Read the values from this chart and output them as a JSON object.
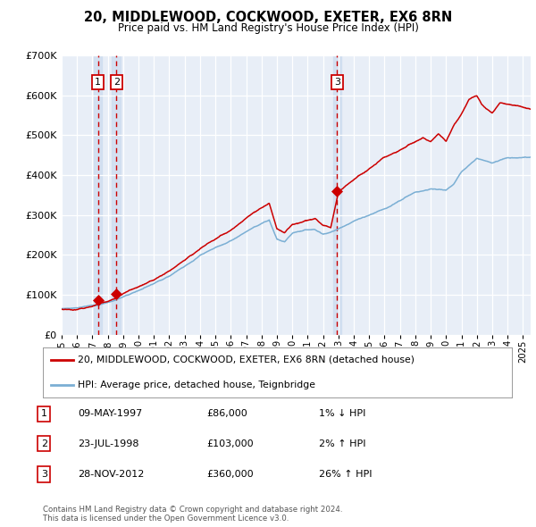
{
  "title": "20, MIDDLEWOOD, COCKWOOD, EXETER, EX6 8RN",
  "subtitle": "Price paid vs. HM Land Registry's House Price Index (HPI)",
  "x_start": 1995.0,
  "x_end": 2025.5,
  "y_min": 0,
  "y_max": 700000,
  "plot_bg_color": "#e8eef7",
  "grid_color": "#ffffff",
  "sale_points": [
    {
      "year": 1997.356,
      "price": 86000,
      "label": "1"
    },
    {
      "year": 1998.556,
      "price": 103000,
      "label": "2"
    },
    {
      "year": 2012.911,
      "price": 360000,
      "label": "3"
    }
  ],
  "sale_line_color": "#cc0000",
  "hpi_line_color": "#7bafd4",
  "marker_color": "#cc0000",
  "dashed_line_color": "#cc0000",
  "legend_entries": [
    "20, MIDDLEWOOD, COCKWOOD, EXETER, EX6 8RN (detached house)",
    "HPI: Average price, detached house, Teignbridge"
  ],
  "table_rows": [
    {
      "num": "1",
      "date": "09-MAY-1997",
      "price": "£86,000",
      "change": "1% ↓ HPI"
    },
    {
      "num": "2",
      "date": "23-JUL-1998",
      "price": "£103,000",
      "change": "2% ↑ HPI"
    },
    {
      "num": "3",
      "date": "28-NOV-2012",
      "price": "£360,000",
      "change": "26% ↑ HPI"
    }
  ],
  "footnote": "Contains HM Land Registry data © Crown copyright and database right 2024.\nThis data is licensed under the Open Government Licence v3.0.",
  "yticks": [
    0,
    100000,
    200000,
    300000,
    400000,
    500000,
    600000,
    700000
  ],
  "ytick_labels": [
    "£0",
    "£100K",
    "£200K",
    "£300K",
    "£400K",
    "£500K",
    "£600K",
    "£700K"
  ],
  "xticks": [
    1995,
    1996,
    1997,
    1998,
    1999,
    2000,
    2001,
    2002,
    2003,
    2004,
    2005,
    2006,
    2007,
    2008,
    2009,
    2010,
    2011,
    2012,
    2013,
    2014,
    2015,
    2016,
    2017,
    2018,
    2019,
    2020,
    2021,
    2022,
    2023,
    2024,
    2025
  ],
  "col_shade_color": "#c8d8ee",
  "col_shade_alpha": 0.6,
  "hpi_anchors": {
    "1995.0": 65000,
    "1996.0": 68000,
    "1997.4": 75000,
    "1998.5": 88000,
    "2000.0": 112000,
    "2002.0": 152000,
    "2004.0": 205000,
    "2006.0": 242000,
    "2007.5": 278000,
    "2008.5": 296000,
    "2009.0": 248000,
    "2009.5": 240000,
    "2010.0": 260000,
    "2011.0": 268000,
    "2011.5": 270000,
    "2012.0": 258000,
    "2012.5": 262000,
    "2013.0": 272000,
    "2014.0": 290000,
    "2015.0": 305000,
    "2016.0": 322000,
    "2017.0": 342000,
    "2018.0": 362000,
    "2019.0": 372000,
    "2020.0": 368000,
    "2020.5": 385000,
    "2021.0": 415000,
    "2022.0": 452000,
    "2023.0": 442000,
    "2024.0": 455000,
    "2025.5": 458000
  },
  "price_anchors": {
    "1995.0": 63000,
    "1996.0": 65000,
    "1997.0": 73000,
    "1997.4": 80000,
    "1998.5": 92000,
    "2000.0": 118000,
    "2002.0": 158000,
    "2004.0": 215000,
    "2006.0": 258000,
    "2007.5": 305000,
    "2008.5": 328000,
    "2009.0": 262000,
    "2009.5": 252000,
    "2010.0": 272000,
    "2011.0": 282000,
    "2011.5": 288000,
    "2012.0": 272000,
    "2012.5": 268000,
    "2013.0": 358000,
    "2013.5": 375000,
    "2014.0": 390000,
    "2015.0": 420000,
    "2016.0": 450000,
    "2017.0": 468000,
    "2018.0": 488000,
    "2018.5": 498000,
    "2019.0": 488000,
    "2019.5": 508000,
    "2020.0": 488000,
    "2020.5": 528000,
    "2021.0": 558000,
    "2021.5": 598000,
    "2022.0": 608000,
    "2022.3": 588000,
    "2022.6": 578000,
    "2023.0": 568000,
    "2023.5": 592000,
    "2024.0": 588000,
    "2025.5": 578000
  }
}
